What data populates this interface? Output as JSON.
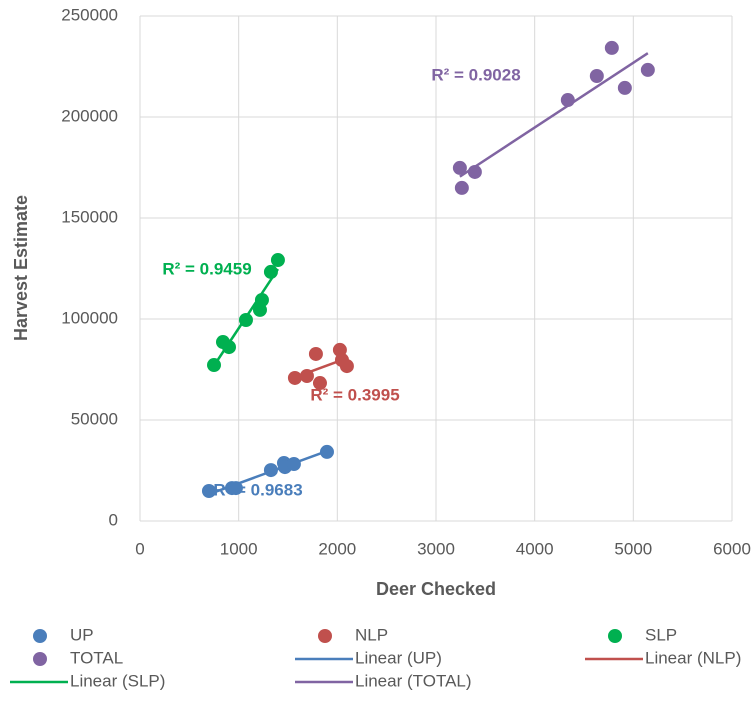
{
  "chart_data": {
    "type": "scatter",
    "xlabel": "Deer Checked",
    "ylabel": "Harvest Estimate",
    "xlim": [
      0,
      6000
    ],
    "xticks": [
      0,
      1000,
      2000,
      3000,
      4000,
      5000,
      6000
    ],
    "ylim": [
      0,
      250000
    ],
    "yticks": [
      0,
      50000,
      100000,
      150000,
      200000,
      250000
    ],
    "grid": true,
    "legend": "bottom",
    "series": [
      {
        "name": "UP",
        "color": "#4a7ebb",
        "trendline": "Linear (UP)",
        "r2_label": "R² = 0.9683",
        "x": [
          699,
          932,
          972,
          1327,
          1459,
          1469,
          1560,
          1895
        ],
        "values": [
          14850,
          16300,
          16300,
          25200,
          28700,
          26700,
          28200,
          34200
        ]
      },
      {
        "name": "NLP",
        "color": "#c0504d",
        "trendline": "Linear (NLP)",
        "r2_label": "R² = 0.3995",
        "x": [
          1570,
          1692,
          1783,
          1824,
          2026,
          2047,
          2097
        ],
        "values": [
          70800,
          71800,
          82700,
          68300,
          84700,
          79700,
          76700
        ]
      },
      {
        "name": "SLP",
        "color": "#00b050",
        "trendline": "Linear (SLP)",
        "r2_label": "R² = 0.9459",
        "x": [
          750,
          841,
          902,
          1074,
          1216,
          1236,
          1327,
          1398
        ],
        "values": [
          77200,
          88600,
          86100,
          99500,
          104500,
          109400,
          123300,
          129200
        ]
      },
      {
        "name": "TOTAL",
        "color": "#8064a2",
        "trendline": "Linear (TOTAL)",
        "r2_label": "R² = 0.9028",
        "x": [
          3242,
          3262,
          3394,
          4336,
          4630,
          4782,
          4914,
          5147
        ],
        "values": [
          174800,
          164900,
          172800,
          208400,
          220300,
          234200,
          214400,
          223300
        ]
      }
    ]
  }
}
